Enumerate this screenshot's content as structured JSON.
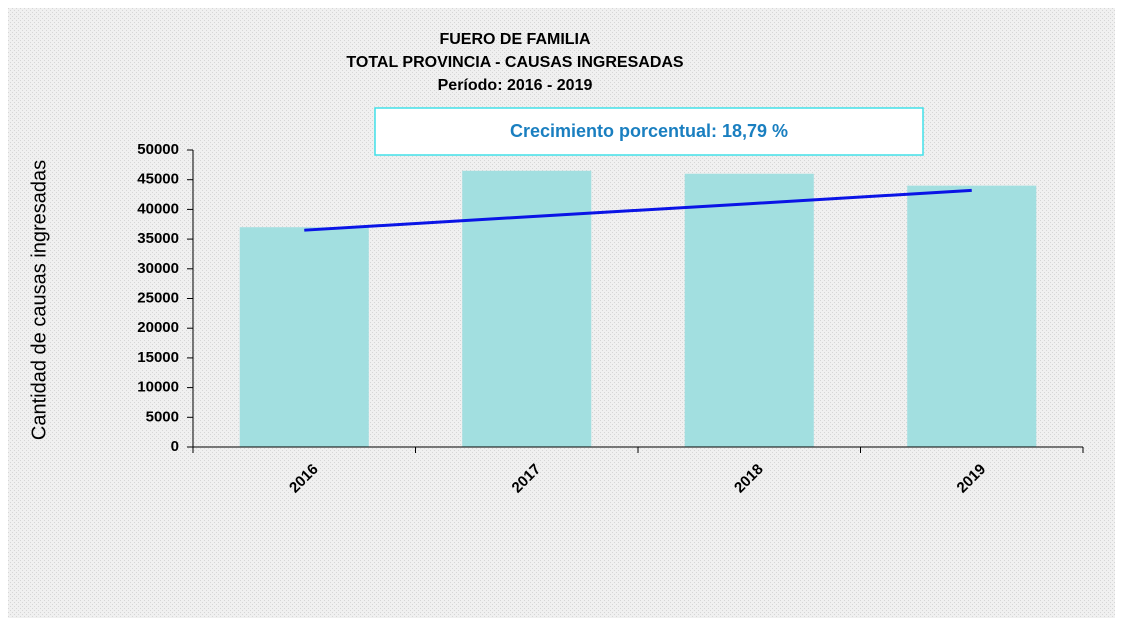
{
  "chart_data": {
    "type": "bar",
    "title": [
      "FUERO DE FAMILIA",
      "TOTAL PROVINCIA - CAUSAS INGRESADAS",
      "Período: 2016 - 2019"
    ],
    "annotation": "Crecimiento porcentual: 18,79 %",
    "y_label": "Cantidad de causas ingresadas",
    "categories": [
      "2016",
      "2017",
      "2018",
      "2019"
    ],
    "values": [
      37000,
      46500,
      46000,
      44000
    ],
    "color": "#a2dfe0",
    "trendline": {
      "color": "#0a14e6",
      "values": [
        36500,
        38750,
        40950,
        43200
      ]
    },
    "ylim": [
      0,
      50000
    ],
    "yticks": [
      0,
      5000,
      10000,
      15000,
      20000,
      25000,
      30000,
      35000,
      40000,
      45000,
      50000
    ]
  }
}
